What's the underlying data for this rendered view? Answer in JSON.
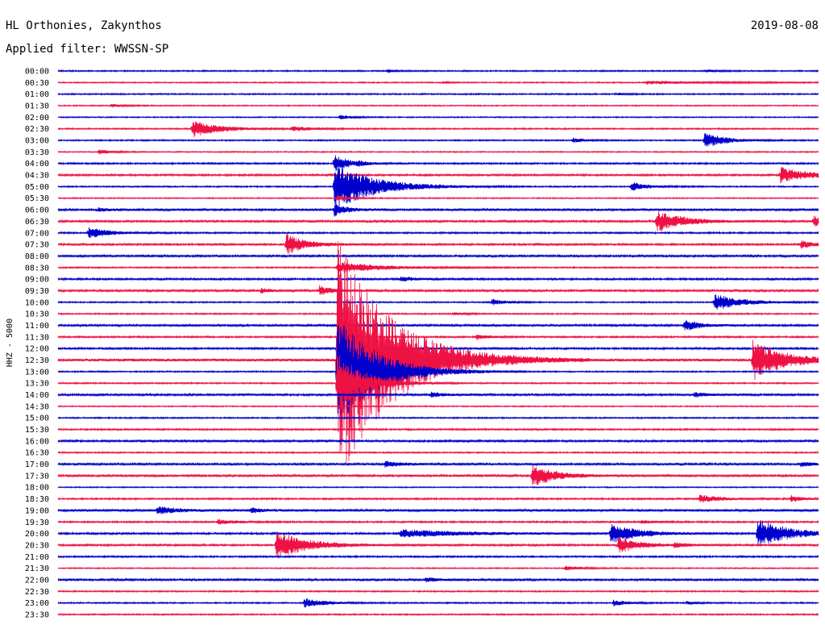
{
  "header": {
    "station": "HL Orthonies, Zakynthos",
    "date": "2019-08-08",
    "filter": "Applied filter: WWSSN-SP"
  },
  "chart_data": {
    "type": "line",
    "subtype": "helicorder",
    "ylabel": "HHZ - 5000",
    "colors": [
      "#0000cc",
      "#ee1144"
    ],
    "tick_labels": [
      "00:00",
      "00:30",
      "01:00",
      "01:30",
      "02:00",
      "02:30",
      "03:00",
      "03:30",
      "04:00",
      "04:30",
      "05:00",
      "05:30",
      "06:00",
      "06:30",
      "07:00",
      "07:30",
      "08:00",
      "08:30",
      "09:00",
      "09:30",
      "10:00",
      "10:30",
      "11:00",
      "11:30",
      "12:00",
      "12:30",
      "13:00",
      "13:30",
      "14:00",
      "14:30",
      "15:00",
      "15:30",
      "16:00",
      "16:30",
      "17:00",
      "17:30",
      "18:00",
      "18:30",
      "19:00",
      "19:30",
      "20:00",
      "20:30",
      "21:00",
      "21:30",
      "22:00",
      "22:30",
      "23:00",
      "23:30"
    ],
    "trace_minutes": 30,
    "noise_level": [
      0.6,
      0.5,
      0.6,
      0.5,
      0.5,
      0.6,
      0.6,
      0.5,
      0.7,
      0.8,
      0.6,
      0.5,
      1.0,
      0.9,
      0.7,
      0.8,
      0.9,
      0.6,
      0.8,
      0.9,
      0.6,
      0.6,
      0.9,
      0.7,
      0.8,
      1.2,
      0.6,
      0.6,
      0.9,
      0.5,
      0.6,
      0.7,
      0.9,
      0.6,
      0.9,
      0.9,
      0.5,
      0.7,
      1.0,
      0.7,
      0.8,
      0.8,
      0.7,
      0.5,
      0.9,
      0.6,
      0.6,
      0.6
    ],
    "events": [
      {
        "trace": 0,
        "minute": 25.6,
        "amp": 1.5,
        "duration": 0.4
      },
      {
        "trace": 0,
        "minute": 13.0,
        "amp": 2,
        "duration": 0.3
      },
      {
        "trace": 1,
        "minute": 23.2,
        "amp": 2,
        "duration": 2.8
      },
      {
        "trace": 1,
        "minute": 15.2,
        "amp": 1,
        "duration": 0.3
      },
      {
        "trace": 2,
        "minute": 22.0,
        "amp": 1.5,
        "duration": 0.5
      },
      {
        "trace": 3,
        "minute": 2.1,
        "amp": 2,
        "duration": 0.5
      },
      {
        "trace": 4,
        "minute": 11.1,
        "amp": 3,
        "duration": 0.5
      },
      {
        "trace": 5,
        "minute": 5.3,
        "amp": 11,
        "duration": 1.0
      },
      {
        "trace": 5,
        "minute": 9.2,
        "amp": 3,
        "duration": 0.8
      },
      {
        "trace": 6,
        "minute": 25.5,
        "amp": 10,
        "duration": 0.8
      },
      {
        "trace": 6,
        "minute": 20.3,
        "amp": 3,
        "duration": 0.5
      },
      {
        "trace": 7,
        "minute": 1.6,
        "amp": 3,
        "duration": 0.5
      },
      {
        "trace": 8,
        "minute": 10.9,
        "amp": 12,
        "duration": 0.5
      },
      {
        "trace": 8,
        "minute": 11.8,
        "amp": 3,
        "duration": 0.4
      },
      {
        "trace": 9,
        "minute": 28.5,
        "amp": 10,
        "duration": 1.0
      },
      {
        "trace": 10,
        "minute": 10.9,
        "amp": 30,
        "duration": 1.5
      },
      {
        "trace": 10,
        "minute": 22.6,
        "amp": 6,
        "duration": 0.6
      },
      {
        "trace": 11,
        "minute": 11.0,
        "amp": 3,
        "duration": 0.5
      },
      {
        "trace": 12,
        "minute": 10.9,
        "amp": 8,
        "duration": 0.5
      },
      {
        "trace": 12,
        "minute": 1.6,
        "amp": 2,
        "duration": 0.5
      },
      {
        "trace": 13,
        "minute": 23.6,
        "amp": 14,
        "duration": 1.0
      },
      {
        "trace": 13,
        "minute": 29.8,
        "amp": 7,
        "duration": 0.5
      },
      {
        "trace": 14,
        "minute": 1.2,
        "amp": 7,
        "duration": 0.8
      },
      {
        "trace": 15,
        "minute": 9.0,
        "amp": 13,
        "duration": 0.8
      },
      {
        "trace": 15,
        "minute": 29.3,
        "amp": 5,
        "duration": 0.6
      },
      {
        "trace": 17,
        "minute": 11.0,
        "amp": 7,
        "duration": 1.6
      },
      {
        "trace": 18,
        "minute": 13.5,
        "amp": 3,
        "duration": 0.6
      },
      {
        "trace": 19,
        "minute": 10.3,
        "amp": 6,
        "duration": 0.5
      },
      {
        "trace": 19,
        "minute": 8.0,
        "amp": 3,
        "duration": 0.4
      },
      {
        "trace": 20,
        "minute": 25.9,
        "amp": 11,
        "duration": 1.0
      },
      {
        "trace": 20,
        "minute": 17.1,
        "amp": 4,
        "duration": 0.5
      },
      {
        "trace": 21,
        "minute": 15.6,
        "amp": 2,
        "duration": 0.4
      },
      {
        "trace": 22,
        "minute": 24.7,
        "amp": 7,
        "duration": 0.6
      },
      {
        "trace": 23,
        "minute": 16.5,
        "amp": 3,
        "duration": 0.5
      },
      {
        "trace": 24,
        "minute": 11.0,
        "amp": 10,
        "duration": 0.5
      },
      {
        "trace": 25,
        "minute": 11.0,
        "amp": 160,
        "duration": 2.0
      },
      {
        "trace": 25,
        "minute": 27.4,
        "amp": 25,
        "duration": 1.2
      },
      {
        "trace": 26,
        "minute": 11.0,
        "amp": 70,
        "duration": 1.5
      },
      {
        "trace": 27,
        "minute": 11.0,
        "amp": 40,
        "duration": 1.0
      },
      {
        "trace": 28,
        "minute": 14.7,
        "amp": 3,
        "duration": 0.6
      },
      {
        "trace": 28,
        "minute": 25.1,
        "amp": 3,
        "duration": 0.5
      },
      {
        "trace": 34,
        "minute": 12.9,
        "amp": 4,
        "duration": 0.6
      },
      {
        "trace": 34,
        "minute": 29.3,
        "amp": 3,
        "duration": 0.5
      },
      {
        "trace": 35,
        "minute": 18.7,
        "amp": 14,
        "duration": 0.9
      },
      {
        "trace": 37,
        "minute": 25.3,
        "amp": 5,
        "duration": 0.8
      },
      {
        "trace": 37,
        "minute": 28.9,
        "amp": 4,
        "duration": 0.5
      },
      {
        "trace": 38,
        "minute": 3.9,
        "amp": 5,
        "duration": 0.8
      },
      {
        "trace": 38,
        "minute": 7.6,
        "amp": 3,
        "duration": 0.5
      },
      {
        "trace": 39,
        "minute": 6.3,
        "amp": 3,
        "duration": 0.8
      },
      {
        "trace": 39,
        "minute": 23.0,
        "amp": 2,
        "duration": 0.6
      },
      {
        "trace": 40,
        "minute": 13.5,
        "amp": 5,
        "duration": 2.5
      },
      {
        "trace": 40,
        "minute": 21.8,
        "amp": 13,
        "duration": 1.0
      },
      {
        "trace": 40,
        "minute": 27.6,
        "amp": 18,
        "duration": 1.2
      },
      {
        "trace": 41,
        "minute": 8.6,
        "amp": 18,
        "duration": 1.2
      },
      {
        "trace": 41,
        "minute": 22.1,
        "amp": 10,
        "duration": 0.8
      },
      {
        "trace": 41,
        "minute": 24.3,
        "amp": 3,
        "duration": 0.5
      },
      {
        "trace": 43,
        "minute": 20.0,
        "amp": 3,
        "duration": 0.6
      },
      {
        "trace": 44,
        "minute": 14.5,
        "amp": 3,
        "duration": 0.5
      },
      {
        "trace": 46,
        "minute": 9.7,
        "amp": 6,
        "duration": 0.8
      },
      {
        "trace": 46,
        "minute": 21.9,
        "amp": 4,
        "duration": 0.5
      },
      {
        "trace": 46,
        "minute": 24.8,
        "amp": 2,
        "duration": 0.4
      }
    ]
  }
}
